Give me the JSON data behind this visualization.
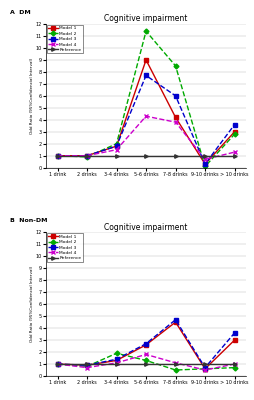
{
  "panel_a_label": "A  DM",
  "panel_b_label": "B  Non-DM",
  "title": "Cognitive impairment",
  "ylabel": "Odd Ratio (95%Confidencial Interval)",
  "xlabel_ticks": [
    "1 drink",
    "2 drinks",
    "3-4 drinks",
    "5-6 drinks",
    "7-8 drinks",
    "9-10 drinks",
    "> 10 drinks"
  ],
  "ylim": [
    0,
    12
  ],
  "yticks": [
    0,
    1,
    2,
    3,
    4,
    5,
    6,
    7,
    8,
    9,
    10,
    11,
    12
  ],
  "dm": {
    "model1": {
      "color": "#cc0000",
      "values": [
        1.0,
        1.0,
        1.8,
        9.0,
        4.2,
        0.3,
        3.0
      ],
      "marker": "s",
      "linestyle": "-",
      "lw": 1.0
    },
    "model2": {
      "color": "#00aa00",
      "values": [
        1.0,
        0.9,
        2.0,
        11.4,
        8.5,
        0.1,
        2.8
      ],
      "marker": "D",
      "linestyle": "--",
      "lw": 1.0
    },
    "model3": {
      "color": "#0000cc",
      "values": [
        1.0,
        1.0,
        1.8,
        7.7,
        6.0,
        0.3,
        3.6
      ],
      "marker": "s",
      "linestyle": "--",
      "lw": 1.0
    },
    "model4": {
      "color": "#cc00cc",
      "values": [
        1.0,
        1.0,
        1.5,
        4.3,
        3.8,
        0.7,
        1.3
      ],
      "marker": "x",
      "linestyle": "--",
      "lw": 1.0
    },
    "reference": {
      "color": "#333333",
      "values": [
        1.0,
        1.0,
        1.0,
        1.0,
        1.0,
        1.0,
        1.0
      ],
      "marker": ">",
      "linestyle": "-",
      "lw": 1.0
    }
  },
  "non_dm": {
    "model1": {
      "color": "#cc0000",
      "values": [
        1.0,
        0.9,
        1.3,
        2.6,
        4.5,
        0.6,
        3.0
      ],
      "marker": "s",
      "linestyle": "-",
      "lw": 1.0
    },
    "model2": {
      "color": "#00aa00",
      "values": [
        1.0,
        0.8,
        1.9,
        1.3,
        0.5,
        0.6,
        0.7
      ],
      "marker": "D",
      "linestyle": "--",
      "lw": 1.0
    },
    "model3": {
      "color": "#0000cc",
      "values": [
        1.0,
        0.9,
        1.4,
        2.7,
        4.7,
        0.7,
        3.6
      ],
      "marker": "s",
      "linestyle": "--",
      "lw": 1.0
    },
    "model4": {
      "color": "#cc00cc",
      "values": [
        1.0,
        0.7,
        1.1,
        1.8,
        1.1,
        0.5,
        1.0
      ],
      "marker": "x",
      "linestyle": "--",
      "lw": 1.0
    },
    "reference": {
      "color": "#333333",
      "values": [
        1.0,
        1.0,
        1.0,
        1.0,
        1.0,
        1.0,
        1.0
      ],
      "marker": ">",
      "linestyle": "-",
      "lw": 1.0
    }
  },
  "legend_labels": [
    "Model 1",
    "Model 2",
    "Model 3",
    "Model 4",
    "Reference"
  ],
  "model_keys": [
    "model1",
    "model2",
    "model3",
    "model4",
    "reference"
  ]
}
